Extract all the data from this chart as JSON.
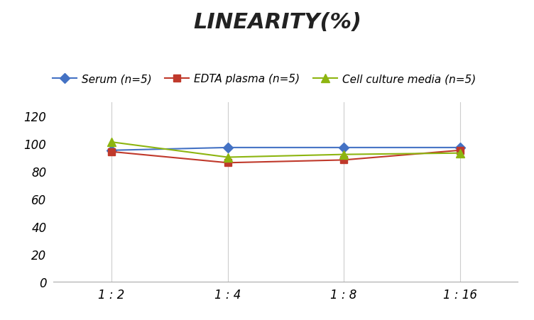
{
  "title": "LINEARITY(%)",
  "x_labels": [
    "1 : 2",
    "1 : 4",
    "1 : 8",
    "1 : 16"
  ],
  "x_positions": [
    0,
    1,
    2,
    3
  ],
  "series": [
    {
      "label": "Serum (n=5)",
      "values": [
        95,
        97,
        97,
        97
      ],
      "color": "#4472C4",
      "marker": "D",
      "linewidth": 1.5,
      "markersize": 7
    },
    {
      "label": "EDTA plasma (n=5)",
      "values": [
        94,
        86,
        88,
        95
      ],
      "color": "#C0392B",
      "marker": "s",
      "linewidth": 1.5,
      "markersize": 7
    },
    {
      "label": "Cell culture media (n=5)",
      "values": [
        101,
        90,
        92,
        93
      ],
      "color": "#8DB510",
      "marker": "^",
      "linewidth": 1.5,
      "markersize": 8
    }
  ],
  "ylim": [
    0,
    130
  ],
  "yticks": [
    0,
    20,
    40,
    60,
    80,
    100,
    120
  ],
  "background_color": "#ffffff",
  "grid_color": "#cccccc",
  "title_fontsize": 22,
  "legend_fontsize": 11,
  "tick_fontsize": 12
}
